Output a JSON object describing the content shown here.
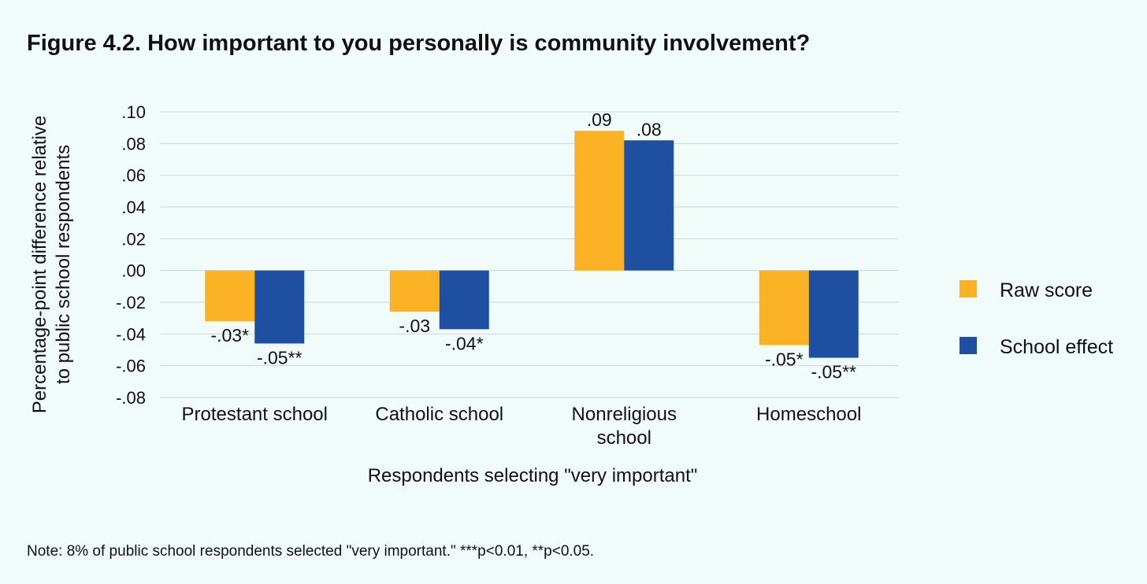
{
  "title": "Figure 4.2. How important to you personally is community involvement?",
  "note": "Note: 8% of public school respondents selected \"very important.\" ***p<0.01, **p<0.05.",
  "colors": {
    "raw": "#fbb325",
    "effect": "#1f4fa0",
    "background": "#f1fbfa",
    "grid": "#cfd6da"
  },
  "chart_data": {
    "type": "bar",
    "title": "Figure 4.2. How important to you personally is community involvement?",
    "xlabel": "Respondents selecting \"very important\"",
    "ylabel": "Percentage-point difference relative to public school respondents",
    "ylabel_lines": [
      "Percentage-point difference relative",
      "to public school respondents"
    ],
    "categories": [
      "Protestant school",
      "Catholic school",
      "Nonreligious school",
      "Homeschool"
    ],
    "category_lines": [
      [
        "Protestant school"
      ],
      [
        "Catholic school"
      ],
      [
        "Nonreligious",
        "school"
      ],
      [
        "Homeschool"
      ]
    ],
    "ylim": [
      -0.08,
      0.1
    ],
    "yticks": [
      0.1,
      0.08,
      0.06,
      0.04,
      0.02,
      0.0,
      -0.02,
      -0.04,
      -0.06,
      -0.08
    ],
    "ytick_labels": [
      ".10",
      ".08",
      ".06",
      ".04",
      ".02",
      ".00",
      "-.02",
      "-.04",
      "-.06",
      "-.08"
    ],
    "grid": true,
    "legend_position": "right",
    "series": [
      {
        "name": "Raw score",
        "values": [
          -0.032,
          -0.026,
          0.088,
          -0.047
        ],
        "labels": [
          "-.03*",
          "-.03",
          ".09",
          "-.05*"
        ]
      },
      {
        "name": "School effect",
        "values": [
          -0.046,
          -0.037,
          0.082,
          -0.055
        ],
        "labels": [
          "-.05**",
          "-.04*",
          ".08",
          "-.05**"
        ]
      }
    ]
  }
}
